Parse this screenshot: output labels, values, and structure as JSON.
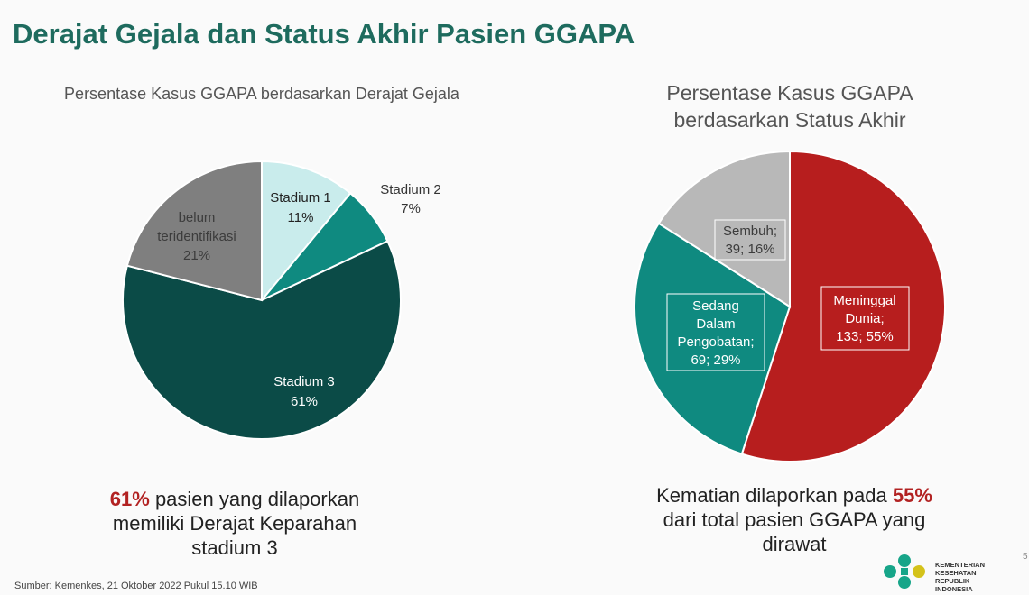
{
  "title": "Derajat Gejala dan Status Akhir Pasien GGAPA",
  "chart_data": [
    {
      "type": "pie",
      "title": "Persentase Kasus GGAPA berdasarkan Derajat Gejala",
      "slices": [
        {
          "name": "Stadium 1",
          "value": 11,
          "label": "11%",
          "color": "#c9ecec"
        },
        {
          "name": "Stadium 2",
          "value": 7,
          "label": "7%",
          "color": "#0f8a80"
        },
        {
          "name": "Stadium 3",
          "value": 61,
          "label": "61%",
          "color": "#0b4b47"
        },
        {
          "name": "belum teridentifikasi",
          "value": 21,
          "label": "21%",
          "color": "#7f7f7f"
        }
      ]
    },
    {
      "type": "pie",
      "title": "Persentase Kasus GGAPA berdasarkan Status Akhir",
      "slices": [
        {
          "name": "Meninggal Dunia",
          "count": 133,
          "value": 55,
          "label": "133; 55%",
          "color": "#b71e1e"
        },
        {
          "name": "Sedang Dalam Pengobatan",
          "count": 69,
          "value": 29,
          "label": "69; 29%",
          "color": "#0f8a80"
        },
        {
          "name": "Sembuh",
          "count": 39,
          "value": 16,
          "label": "39; 16%",
          "color": "#b8b8b8"
        }
      ]
    }
  ],
  "left_labels": {
    "stadium1_name": "Stadium 1",
    "stadium1_pct": "11%",
    "stadium2_name": "Stadium 2",
    "stadium2_pct": "7%",
    "stadium3_name": "Stadium 3",
    "stadium3_pct": "61%",
    "belum_line1": "belum",
    "belum_line2": "teridentifikasi",
    "belum_pct": "21%"
  },
  "right_labels": {
    "meninggal_line1": "Meninggal",
    "meninggal_line2": "Dunia;",
    "meninggal_line3": "133; 55%",
    "sedang_line1": "Sedang",
    "sedang_line2": "Dalam",
    "sedang_line3": "Pengobatan;",
    "sedang_line4": "69; 29%",
    "sembuh_line1": "Sembuh;",
    "sembuh_line2": "39; 16%"
  },
  "summary_left": {
    "highlight": "61%",
    "text1": " pasien yang dilaporkan",
    "text2": "memiliki Derajat Keparahan",
    "text3": "stadium 3"
  },
  "summary_right": {
    "text1": "Kematian dilaporkan pada ",
    "highlight": "55%",
    "text2": "dari total pasien GGAPA yang",
    "text3": "dirawat"
  },
  "source": "Sumber: Kemenkes, 21 Oktober 2022 Pukul 15.10 WIB",
  "logo_text": "KEMENTERIAN KESEHATAN REPUBLIK INDONESIA",
  "page_number": "5"
}
